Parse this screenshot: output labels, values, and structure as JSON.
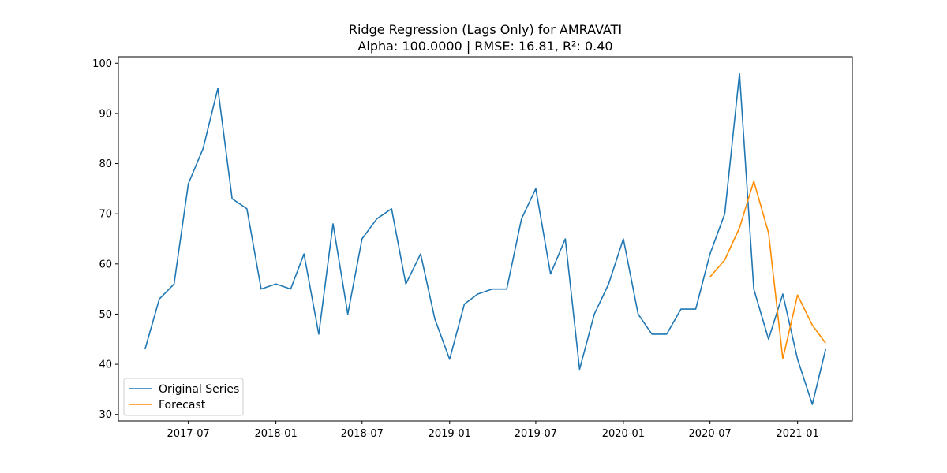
{
  "chart_data": {
    "type": "line",
    "title": "Ridge Regression (Lags Only) for AMRAVATI",
    "subtitle": "Alpha: 100.0000 | RMSE: 16.81, R²: 0.40",
    "xlabel": "",
    "ylabel": "",
    "xlim": [
      "2017-02-04",
      "2021-04-26"
    ],
    "ylim": [
      28.7,
      101.3
    ],
    "x_ticks": [
      "2017-07",
      "2018-01",
      "2018-07",
      "2019-01",
      "2019-07",
      "2020-01",
      "2020-07",
      "2021-01"
    ],
    "y_ticks": [
      30,
      40,
      50,
      60,
      70,
      80,
      90,
      100
    ],
    "grid": false,
    "legend": {
      "position": "lower-left"
    },
    "series": [
      {
        "name": "Original Series",
        "color": "#1f77b4",
        "x": [
          "2017-04",
          "2017-05",
          "2017-06",
          "2017-07",
          "2017-08",
          "2017-09",
          "2017-10",
          "2017-11",
          "2017-12",
          "2018-01",
          "2018-02",
          "2018-03",
          "2018-04",
          "2018-05",
          "2018-06",
          "2018-07",
          "2018-08",
          "2018-09",
          "2018-10",
          "2018-11",
          "2018-12",
          "2019-01",
          "2019-02",
          "2019-03",
          "2019-04",
          "2019-05",
          "2019-06",
          "2019-07",
          "2019-08",
          "2019-09",
          "2019-10",
          "2019-11",
          "2019-12",
          "2020-01",
          "2020-02",
          "2020-03",
          "2020-04",
          "2020-05",
          "2020-06",
          "2020-07",
          "2020-08",
          "2020-09",
          "2020-10",
          "2020-11",
          "2020-12",
          "2021-01",
          "2021-02",
          "2021-03"
        ],
        "values": [
          43,
          53,
          56,
          76,
          83,
          95,
          73,
          71,
          55,
          56,
          55,
          62,
          46,
          68,
          50,
          65,
          69,
          71,
          56,
          62,
          49,
          41,
          52,
          54,
          55,
          55,
          69,
          75,
          58,
          65,
          39,
          50,
          56,
          65,
          50,
          46,
          46,
          51,
          51,
          62,
          70,
          98,
          55,
          45,
          54,
          41,
          32,
          43
        ]
      },
      {
        "name": "Forecast",
        "color": "#ff8c00",
        "x": [
          "2020-07",
          "2020-08",
          "2020-09",
          "2020-10",
          "2020-11",
          "2020-12",
          "2021-01",
          "2021-02",
          "2021-03"
        ],
        "values": [
          57.4,
          60.8,
          67.2,
          76.5,
          66.2,
          41.1,
          53.8,
          47.8,
          44.2
        ]
      }
    ]
  }
}
